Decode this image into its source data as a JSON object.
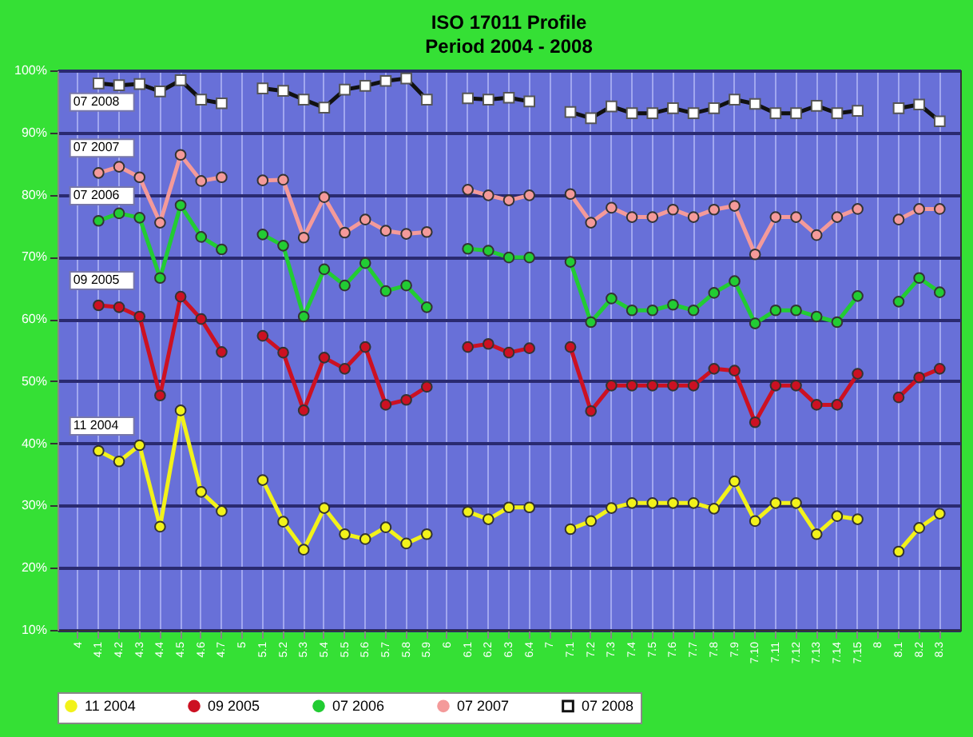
{
  "chart_data": {
    "type": "line",
    "title": "ISO 17011 Profile",
    "subtitle": "Period 2004 - 2008",
    "categories": [
      "4",
      "4.1",
      "4.2",
      "4.3",
      "4.4",
      "4.5",
      "4.6",
      "4.7",
      "5",
      "5.1",
      "5.2",
      "5.3",
      "5.4",
      "5.5",
      "5.6",
      "5.7",
      "5.8",
      "5.9",
      "6",
      "6.1",
      "6.2",
      "6.3",
      "6.4",
      "7",
      "7.1",
      "7.2",
      "7.3",
      "7.4",
      "7.5",
      "7.6",
      "7.7",
      "7.8",
      "7.9",
      "7.10",
      "7.11",
      "7.12",
      "7.13",
      "7.14",
      "7.15",
      "8",
      "8.1",
      "8.2",
      "8.3"
    ],
    "series": [
      {
        "name": "11 2004",
        "color": "#f2f21a",
        "marker": "circle",
        "values": [
          null,
          38.8,
          37.1,
          39.7,
          26.6,
          45.3,
          32.2,
          29.1,
          null,
          34.1,
          27.4,
          22.9,
          29.6,
          25.4,
          24.6,
          26.5,
          23.9,
          25.4,
          null,
          29.0,
          27.8,
          29.7,
          29.7,
          null,
          26.2,
          27.5,
          29.6,
          30.4,
          30.4,
          30.4,
          30.4,
          29.5,
          33.9,
          27.5,
          30.4,
          30.4,
          25.4,
          28.3,
          27.8,
          null,
          22.6,
          26.4,
          28.7
        ]
      },
      {
        "name": "09 2005",
        "color": "#cc1122",
        "marker": "circle",
        "values": [
          null,
          62.2,
          61.9,
          60.4,
          47.7,
          63.6,
          60.0,
          54.7,
          null,
          57.3,
          54.6,
          45.3,
          53.8,
          52.0,
          55.5,
          46.2,
          47.0,
          49.1,
          null,
          55.5,
          56.0,
          54.6,
          55.3,
          null,
          55.5,
          45.2,
          49.3,
          49.3,
          49.3,
          49.3,
          49.3,
          52.0,
          51.7,
          43.4,
          49.3,
          49.3,
          46.2,
          46.2,
          51.2,
          null,
          47.4,
          50.6,
          52.0
        ]
      },
      {
        "name": "07 2006",
        "color": "#22cc33",
        "marker": "circle",
        "values": [
          null,
          75.8,
          77.0,
          76.3,
          66.6,
          78.3,
          73.2,
          71.2,
          null,
          73.6,
          71.8,
          60.4,
          68.0,
          65.4,
          69.0,
          64.5,
          65.4,
          61.9,
          null,
          71.3,
          71.0,
          69.9,
          69.9,
          null,
          69.2,
          59.5,
          63.3,
          61.4,
          61.4,
          62.3,
          61.4,
          64.2,
          66.1,
          59.3,
          61.4,
          61.4,
          60.4,
          59.5,
          63.7,
          null,
          62.8,
          66.6,
          64.3
        ]
      },
      {
        "name": "07 2007",
        "color": "#f49a9a",
        "marker": "circle",
        "values": [
          null,
          83.5,
          84.5,
          82.8,
          75.5,
          86.4,
          82.2,
          82.8,
          null,
          82.3,
          82.4,
          73.1,
          79.6,
          73.9,
          76.0,
          74.2,
          73.7,
          74.0,
          null,
          80.8,
          79.9,
          79.1,
          79.9,
          null,
          80.1,
          75.5,
          77.9,
          76.4,
          76.4,
          77.6,
          76.4,
          77.6,
          78.2,
          70.4,
          76.4,
          76.4,
          73.5,
          76.4,
          77.7,
          null,
          76.0,
          77.7,
          77.7
        ]
      },
      {
        "name": "07 2008",
        "color": "#111111",
        "marker": "square",
        "values": [
          null,
          97.9,
          97.6,
          97.8,
          96.6,
          98.4,
          95.3,
          94.7,
          null,
          97.1,
          96.7,
          95.3,
          94.0,
          96.9,
          97.5,
          98.3,
          98.7,
          95.3,
          null,
          95.5,
          95.3,
          95.6,
          95.0,
          null,
          93.3,
          92.3,
          94.2,
          93.1,
          93.1,
          93.9,
          93.1,
          93.9,
          95.3,
          94.6,
          93.1,
          93.1,
          94.3,
          93.1,
          93.5,
          null,
          93.9,
          94.5,
          91.8
        ]
      }
    ],
    "annotations": [
      "07 2008",
      "07 2007",
      "07 2006",
      "09 2005",
      "11 2004"
    ],
    "ylim": [
      10,
      100
    ],
    "yticks": [
      {
        "value": 10,
        "label": "10%"
      },
      {
        "value": 20,
        "label": "20%"
      },
      {
        "value": 30,
        "label": "30%"
      },
      {
        "value": 40,
        "label": "40%"
      },
      {
        "value": 50,
        "label": "50%"
      },
      {
        "value": 60,
        "label": "60%"
      },
      {
        "value": 70,
        "label": "70%"
      },
      {
        "value": 80,
        "label": "80%"
      },
      {
        "value": 90,
        "label": "90%"
      },
      {
        "value": 100,
        "label": "100%"
      }
    ],
    "grid": true,
    "legend": "bottom"
  }
}
